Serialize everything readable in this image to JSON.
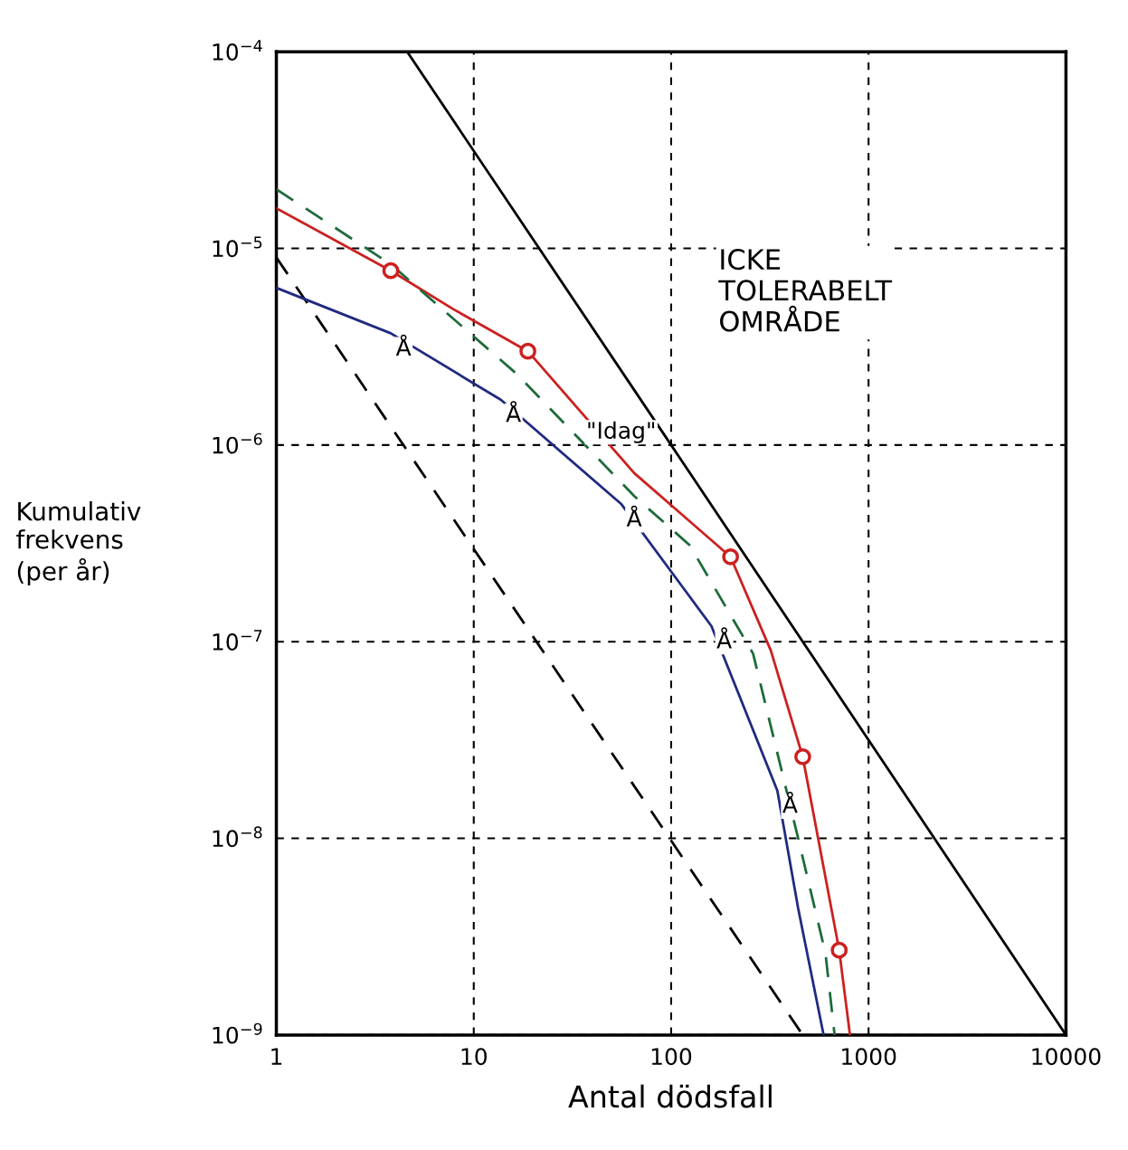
{
  "chart_data": {
    "type": "line",
    "xlabel": "Antal dödsfall",
    "ylabel": "Kumulativ\nfrekvens\n(per år)",
    "log": "xy",
    "grid": true,
    "xlim": [
      1,
      10000
    ],
    "xticks": [
      1,
      10,
      100,
      1000,
      10000
    ],
    "ylim": [
      1e-09,
      0.0001
    ],
    "yticks": [
      {
        "value": 1e-09,
        "label": "10$^{−9}$"
      },
      {
        "value": 1e-08,
        "label": "10$^{−8}$"
      },
      {
        "value": 1e-07,
        "label": "10$^{−7}$"
      },
      {
        "value": 1e-06,
        "label": "10$^{−6}$"
      },
      {
        "value": 1e-05,
        "label": "10$^{−5}$"
      },
      {
        "value": 0.0001,
        "label": "10$^{−4}$"
      }
    ],
    "series": [
      {
        "color": "#000000",
        "line_style": "solid",
        "marker": "none",
        "x": [
          4.6,
          100,
          10000
        ],
        "values": [
          0.0001,
          1e-06,
          1e-09
        ]
      },
      {
        "color": "#000000",
        "line_style": "dashed",
        "marker": "none",
        "x": [
          1,
          464
        ],
        "values": [
          9e-06,
          1e-09
        ]
      },
      {
        "color": "#cc2020",
        "line_style": "solid",
        "marker": "none",
        "x": [
          1,
          3.8,
          7.9,
          18.8,
          65,
          200,
          320,
          464,
          710,
          805
        ],
        "values": [
          1.6e-05,
          7.7e-06,
          4.9e-06,
          3e-06,
          7.2e-07,
          2.7e-07,
          9e-08,
          2.6e-08,
          2.7e-09,
          1e-09
        ]
      },
      {
        "type": "scatter",
        "color": "#cc2020",
        "marker": "circle",
        "x": [
          3.8,
          18.8,
          200,
          464,
          710
        ],
        "values": [
          7.7e-06,
          3e-06,
          2.7e-07,
          2.6e-08,
          2.7e-09
        ]
      },
      {
        "color": "#1e6b3a",
        "line_style": "dashed",
        "marker": "none",
        "x": [
          1,
          3.8,
          16.5,
          65,
          124,
          260,
          440,
          605,
          673
        ],
        "values": [
          2e-05,
          8.3e-06,
          2.3e-06,
          5.5e-07,
          3.1e-07,
          8.7e-08,
          1e-08,
          2.6e-09,
          1e-09
        ]
      },
      {
        "color": "#202a80",
        "line_style": "solid",
        "marker": "none",
        "x": [
          1,
          3.8,
          13.7,
          56,
          160,
          345,
          440,
          592
        ],
        "values": [
          6.3e-06,
          3.7e-06,
          1.7e-06,
          5e-07,
          1.2e-07,
          1.75e-08,
          4.4e-09,
          1e-09
        ]
      }
    ],
    "annotations": [
      {
        "text": "Å",
        "x": 3.8,
        "y": 3.7e-06
      },
      {
        "text": "Å",
        "x": 13.7,
        "y": 1.7e-06
      },
      {
        "text": "Å",
        "x": 56,
        "y": 5e-07
      },
      {
        "text": "Å",
        "x": 160,
        "y": 1.2e-07
      },
      {
        "text": "Å",
        "x": 345,
        "y": 1.75e-08
      },
      {
        "text": "\"Idag\"",
        "x": 35,
        "y": 1.4e-06
      },
      "ICKE\nTOLERABELT\nOMRÅDE"
    ]
  }
}
